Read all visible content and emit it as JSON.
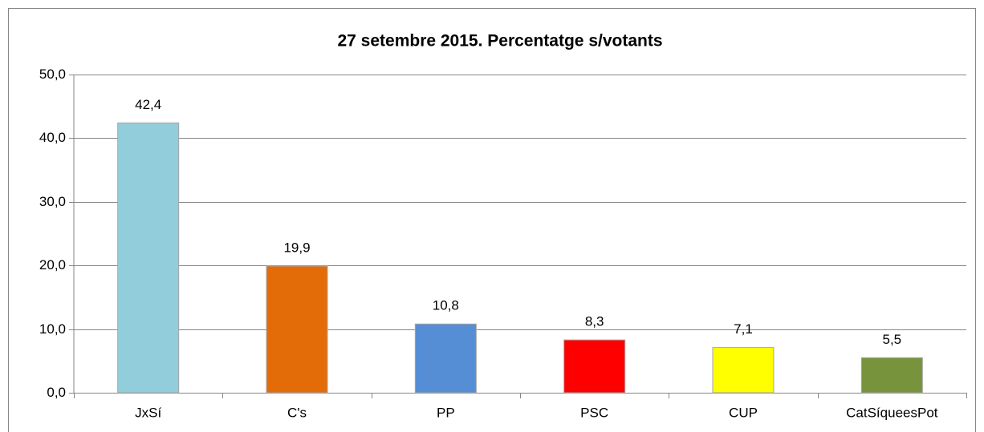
{
  "chart_data": {
    "type": "bar",
    "title": "27 setembre 2015. Percentatge  s/votants",
    "categories": [
      "JxSí",
      "C's",
      "PP",
      "PSC",
      "CUP",
      "CatSíqueesPot"
    ],
    "values": [
      42.4,
      19.9,
      10.8,
      8.3,
      7.1,
      5.5
    ],
    "value_labels": [
      "42,4",
      "19,9",
      "10,8",
      "8,3",
      "7,1",
      "5,5"
    ],
    "colors": [
      "#92cddc",
      "#e36c09",
      "#558ed5",
      "#ff0000",
      "#ffff00",
      "#77933c"
    ],
    "ylim": [
      0,
      50
    ],
    "yticks": [
      {
        "value": 0,
        "label": "0,0"
      },
      {
        "value": 10,
        "label": "10,0"
      },
      {
        "value": 20,
        "label": "20,0"
      },
      {
        "value": 30,
        "label": "30,0"
      },
      {
        "value": 40,
        "label": "40,0"
      },
      {
        "value": 50,
        "label": "50,0"
      }
    ],
    "grid": true
  }
}
